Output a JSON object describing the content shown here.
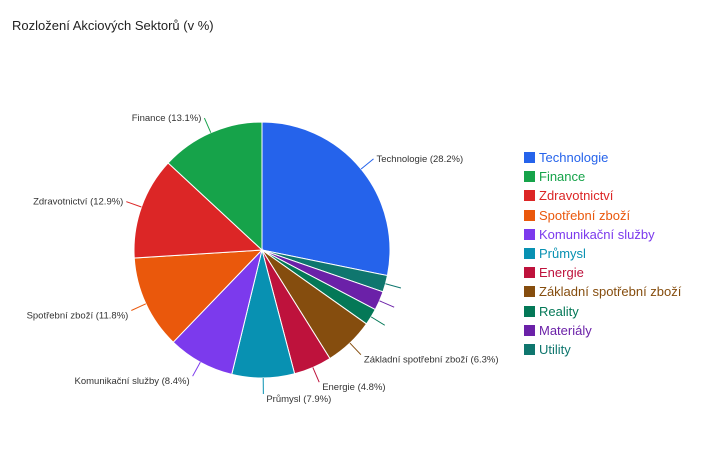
{
  "chart_data": {
    "type": "pie",
    "title": "Rozložení Akciových Sektorů (v %)",
    "legend_position": "right",
    "slices": [
      {
        "label": "Technologie",
        "value": 28.2,
        "color": "#2563eb",
        "show_label": true
      },
      {
        "label": "Utility",
        "value": 2.1,
        "color": "#0f766e",
        "show_label": false
      },
      {
        "label": "Materiály",
        "value": 2.4,
        "color": "#6b21a8",
        "show_label": false
      },
      {
        "label": "Reality",
        "value": 2.1,
        "color": "#047857",
        "show_label": false
      },
      {
        "label": "Základní spotřební zboží",
        "value": 6.3,
        "color": "#854d0e",
        "show_label": true
      },
      {
        "label": "Energie",
        "value": 4.8,
        "color": "#be123c",
        "show_label": true
      },
      {
        "label": "Průmysl",
        "value": 7.9,
        "color": "#0891b2",
        "show_label": true
      },
      {
        "label": "Komunikační služby",
        "value": 8.4,
        "color": "#7c3aed",
        "show_label": true
      },
      {
        "label": "Spotřební zboží",
        "value": 11.8,
        "color": "#ea580c",
        "show_label": true
      },
      {
        "label": "Zdravotnictví",
        "value": 12.9,
        "color": "#dc2626",
        "show_label": true
      },
      {
        "label": "Finance",
        "value": 13.1,
        "color": "#16a34a",
        "show_label": true
      }
    ],
    "legend_order": [
      "Technologie",
      "Finance",
      "Zdravotnictví",
      "Spotřební zboží",
      "Komunikační služby",
      "Průmysl",
      "Energie",
      "Základní spotřební zboží",
      "Reality",
      "Materiály",
      "Utility"
    ]
  }
}
